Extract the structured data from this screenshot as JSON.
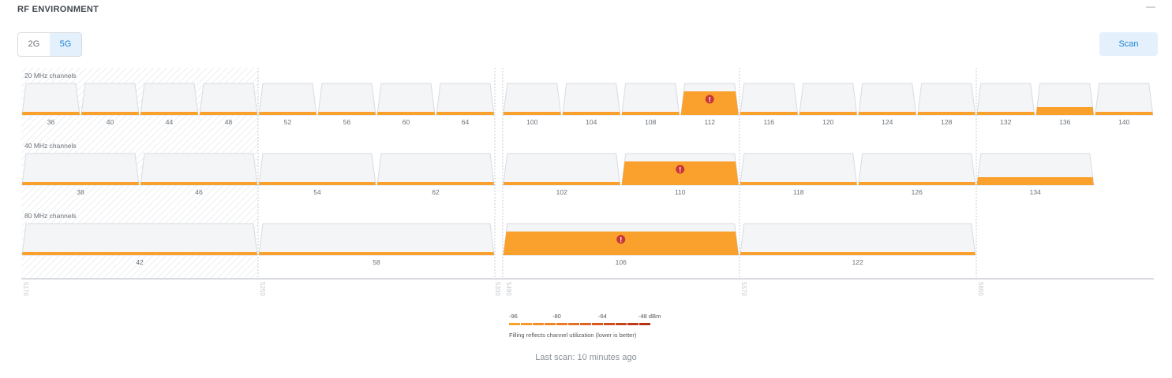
{
  "header": {
    "title": "RF ENVIRONMENT",
    "collapse_icon": "minus-icon"
  },
  "band_toggle": {
    "options": [
      "2G",
      "5G"
    ],
    "selected": "5G"
  },
  "scan_button": {
    "label": "Scan"
  },
  "colors": {
    "accent": "#1b86d6",
    "utilization_fill": "#f9a12c",
    "alert": "#c93636",
    "channel_bg": "#f4f5f7",
    "channel_border": "#d8dbe0",
    "dfs_hatch": "#e6e8eb"
  },
  "rows": [
    {
      "label": "20 MHz channels",
      "channels": [
        {
          "name": "36",
          "utilization": 0.1
        },
        {
          "name": "40",
          "utilization": 0.1
        },
        {
          "name": "44",
          "utilization": 0.1
        },
        {
          "name": "48",
          "utilization": 0.1
        },
        {
          "name": "52",
          "utilization": 0.1
        },
        {
          "name": "56",
          "utilization": 0.1
        },
        {
          "name": "60",
          "utilization": 0.1
        },
        {
          "name": "64",
          "utilization": 0.1
        },
        {
          "name": "100",
          "utilization": 0.1
        },
        {
          "name": "104",
          "utilization": 0.1
        },
        {
          "name": "108",
          "utilization": 0.1
        },
        {
          "name": "112",
          "utilization": 0.75,
          "alert": true
        },
        {
          "name": "116",
          "utilization": 0.1
        },
        {
          "name": "120",
          "utilization": 0.1
        },
        {
          "name": "124",
          "utilization": 0.1
        },
        {
          "name": "128",
          "utilization": 0.1
        },
        {
          "name": "132",
          "utilization": 0.1
        },
        {
          "name": "136",
          "utilization": 0.25
        },
        {
          "name": "140",
          "utilization": 0.1
        }
      ]
    },
    {
      "label": "40 MHz channels",
      "channels": [
        {
          "name": "38",
          "utilization": 0.1
        },
        {
          "name": "46",
          "utilization": 0.1
        },
        {
          "name": "54",
          "utilization": 0.1
        },
        {
          "name": "62",
          "utilization": 0.1
        },
        {
          "name": "102",
          "utilization": 0.1
        },
        {
          "name": "110",
          "utilization": 0.75,
          "alert": true
        },
        {
          "name": "118",
          "utilization": 0.1
        },
        {
          "name": "126",
          "utilization": 0.1
        },
        {
          "name": "134",
          "utilization": 0.25
        }
      ]
    },
    {
      "label": "80 MHz channels",
      "channels": [
        {
          "name": "42",
          "utilization": 0.1
        },
        {
          "name": "58",
          "utilization": 0.1
        },
        {
          "name": "106",
          "utilization": 0.75,
          "alert": true
        },
        {
          "name": "122",
          "utilization": 0.1
        }
      ]
    }
  ],
  "frequency_axis": [
    "5170",
    "5250",
    "5330",
    "5490",
    "5570",
    "5650"
  ],
  "legend": {
    "labels": [
      "-96",
      "-80",
      "-64",
      "-48 dBm"
    ],
    "gradient": [
      "#f9a12c",
      "#f7982a",
      "#f48f28",
      "#f08526",
      "#ec7b24",
      "#e77022",
      "#e06520",
      "#d95a1e",
      "#d04f1c",
      "#c7441a",
      "#bd3918",
      "#b32f16"
    ],
    "note": "Filling reflects channel utilization (lower is better)"
  },
  "last_scan": "Last scan: 10 minutes ago"
}
